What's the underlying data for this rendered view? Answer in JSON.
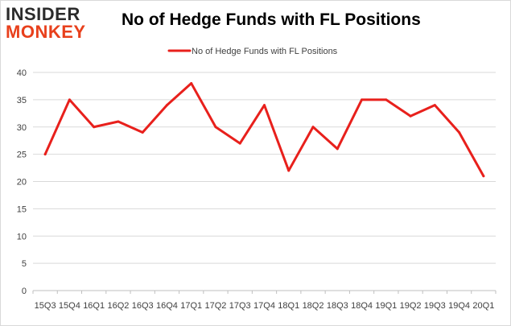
{
  "logo": {
    "line1": "INSIDER",
    "line2": "MONKEY"
  },
  "colors": {
    "series": "#e8201c",
    "grid": "#d9d9d9",
    "axis": "#bfbfbf",
    "text": "#404040"
  },
  "chart_data": {
    "type": "line",
    "title": "No of Hedge Funds with FL Positions",
    "legend": {
      "label": "No of Hedge Funds with FL Positions",
      "position": "top-center"
    },
    "xlabel": "",
    "ylabel": "",
    "ylim": [
      0,
      40
    ],
    "yticks": [
      0,
      5,
      10,
      15,
      20,
      25,
      30,
      35,
      40
    ],
    "grid": true,
    "categories": [
      "15Q3",
      "15Q4",
      "16Q1",
      "16Q2",
      "16Q3",
      "16Q4",
      "17Q1",
      "17Q2",
      "17Q3",
      "17Q4",
      "18Q1",
      "18Q2",
      "18Q3",
      "18Q4",
      "19Q1",
      "19Q2",
      "19Q3",
      "19Q4",
      "20Q1"
    ],
    "series": [
      {
        "name": "No of Hedge Funds with FL Positions",
        "values": [
          25,
          35,
          30,
          31,
          29,
          34,
          38,
          30,
          27,
          34,
          22,
          30,
          26,
          35,
          35,
          32,
          34,
          29,
          21
        ]
      }
    ]
  }
}
